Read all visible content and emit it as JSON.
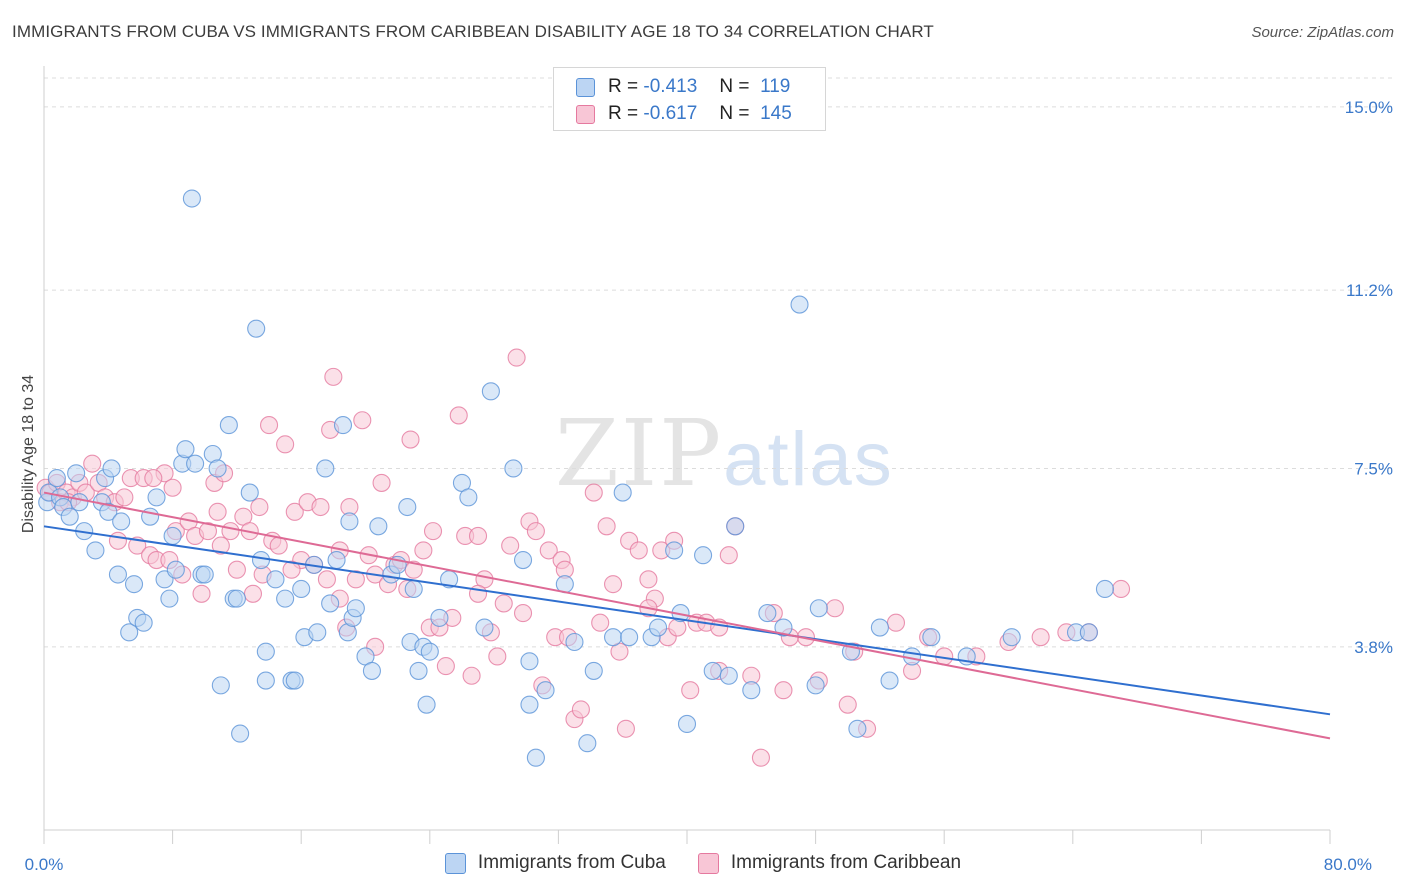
{
  "title": "IMMIGRANTS FROM CUBA VS IMMIGRANTS FROM CARIBBEAN DISABILITY AGE 18 TO 34 CORRELATION CHART",
  "source": "Source: ZipAtlas.com",
  "watermark": {
    "zip": "ZIP",
    "atlas": "atlas"
  },
  "legend": {
    "rows": [
      {
        "r_label": "R =",
        "r_value": "-0.413",
        "n_label": "N =",
        "n_value": "119",
        "color": "#a8c8f0"
      },
      {
        "r_label": "R =",
        "r_value": "-0.617",
        "n_label": "N =",
        "n_value": "145",
        "color": "#f6b8cc"
      }
    ]
  },
  "bottom_legend": [
    "Immigrants from Cuba",
    "Immigrants from Caribbean"
  ],
  "chart_data": {
    "type": "scatter",
    "title": "IMMIGRANTS FROM CUBA VS IMMIGRANTS FROM CARIBBEAN DISABILITY AGE 18 TO 34 CORRELATION CHART",
    "ylabel": "Disability Age 18 to 34",
    "xlim": [
      0,
      80
    ],
    "ylim": [
      0,
      15.6
    ],
    "x_tick_labels": [
      "0.0%",
      "80.0%"
    ],
    "y_ticks": [
      3.8,
      7.5,
      11.2,
      15.0
    ],
    "y_tick_labels": [
      "3.8%",
      "7.5%",
      "11.2%",
      "15.0%"
    ],
    "grid": true,
    "colors": {
      "cuba": "#5b93d8",
      "caribbean": "#e5799f",
      "cuba_fill": "#bcd5f3",
      "caribbean_fill": "#f8c6d6"
    },
    "series": [
      {
        "name": "Immigrants from Cuba",
        "trend": {
          "x": [
            0,
            80
          ],
          "y": [
            6.3,
            2.4
          ]
        },
        "points": [
          [
            0.2,
            6.8
          ],
          [
            0.3,
            7.0
          ],
          [
            0.8,
            7.3
          ],
          [
            1.0,
            6.9
          ],
          [
            1.2,
            6.7
          ],
          [
            1.6,
            6.5
          ],
          [
            2.0,
            7.4
          ],
          [
            2.2,
            6.8
          ],
          [
            2.5,
            6.2
          ],
          [
            3.2,
            5.8
          ],
          [
            3.6,
            6.8
          ],
          [
            3.8,
            7.3
          ],
          [
            4.0,
            6.6
          ],
          [
            4.2,
            7.5
          ],
          [
            4.6,
            5.3
          ],
          [
            4.8,
            6.4
          ],
          [
            5.3,
            4.1
          ],
          [
            5.6,
            5.1
          ],
          [
            5.8,
            4.4
          ],
          [
            6.2,
            4.3
          ],
          [
            6.6,
            6.5
          ],
          [
            7.0,
            6.9
          ],
          [
            7.5,
            5.2
          ],
          [
            7.8,
            4.8
          ],
          [
            8.0,
            6.1
          ],
          [
            8.2,
            5.4
          ],
          [
            8.6,
            7.6
          ],
          [
            8.8,
            7.9
          ],
          [
            9.2,
            13.1
          ],
          [
            9.4,
            7.6
          ],
          [
            9.8,
            5.3
          ],
          [
            10.0,
            5.3
          ],
          [
            10.5,
            7.8
          ],
          [
            10.8,
            7.5
          ],
          [
            11.0,
            3.0
          ],
          [
            11.5,
            8.4
          ],
          [
            11.8,
            4.8
          ],
          [
            12.0,
            4.8
          ],
          [
            12.2,
            2.0
          ],
          [
            12.8,
            7.0
          ],
          [
            13.2,
            10.4
          ],
          [
            13.5,
            5.6
          ],
          [
            13.8,
            3.1
          ],
          [
            13.8,
            3.7
          ],
          [
            14.4,
            5.2
          ],
          [
            15.0,
            4.8
          ],
          [
            15.4,
            3.1
          ],
          [
            15.6,
            3.1
          ],
          [
            16.0,
            5.0
          ],
          [
            16.2,
            4.0
          ],
          [
            16.8,
            5.5
          ],
          [
            17.0,
            4.1
          ],
          [
            17.5,
            7.5
          ],
          [
            17.8,
            4.7
          ],
          [
            18.2,
            5.6
          ],
          [
            18.6,
            8.4
          ],
          [
            18.9,
            4.1
          ],
          [
            19.0,
            6.4
          ],
          [
            19.2,
            4.4
          ],
          [
            19.4,
            4.6
          ],
          [
            20.0,
            3.6
          ],
          [
            20.4,
            3.3
          ],
          [
            20.8,
            6.3
          ],
          [
            21.6,
            5.3
          ],
          [
            22.0,
            5.5
          ],
          [
            22.6,
            6.7
          ],
          [
            22.8,
            3.9
          ],
          [
            23.0,
            5.0
          ],
          [
            23.3,
            3.3
          ],
          [
            23.6,
            3.8
          ],
          [
            23.8,
            2.6
          ],
          [
            24.0,
            3.7
          ],
          [
            24.6,
            4.4
          ],
          [
            25.2,
            5.2
          ],
          [
            26.0,
            7.2
          ],
          [
            26.4,
            6.9
          ],
          [
            27.4,
            4.2
          ],
          [
            27.8,
            9.1
          ],
          [
            29.2,
            7.5
          ],
          [
            29.8,
            5.6
          ],
          [
            30.2,
            3.5
          ],
          [
            30.2,
            2.6
          ],
          [
            30.6,
            1.5
          ],
          [
            31.2,
            2.9
          ],
          [
            32.4,
            5.1
          ],
          [
            33.0,
            3.9
          ],
          [
            33.8,
            1.8
          ],
          [
            34.2,
            3.3
          ],
          [
            35.4,
            4.0
          ],
          [
            36.0,
            7.0
          ],
          [
            36.4,
            4.0
          ],
          [
            37.8,
            4.0
          ],
          [
            38.2,
            4.2
          ],
          [
            39.2,
            5.8
          ],
          [
            39.6,
            4.5
          ],
          [
            40.0,
            2.2
          ],
          [
            41.0,
            5.7
          ],
          [
            41.6,
            3.3
          ],
          [
            42.6,
            3.2
          ],
          [
            43.0,
            6.3
          ],
          [
            44.0,
            2.9
          ],
          [
            45.0,
            4.5
          ],
          [
            46.0,
            4.2
          ],
          [
            47.0,
            10.9
          ],
          [
            48.0,
            3.0
          ],
          [
            48.2,
            4.6
          ],
          [
            50.2,
            3.7
          ],
          [
            50.6,
            2.1
          ],
          [
            52.0,
            4.2
          ],
          [
            52.6,
            3.1
          ],
          [
            54.0,
            3.6
          ],
          [
            55.2,
            4.0
          ],
          [
            57.4,
            3.6
          ],
          [
            60.2,
            4.0
          ],
          [
            64.2,
            4.1
          ],
          [
            65.0,
            4.1
          ],
          [
            66.0,
            5.0
          ]
        ]
      },
      {
        "name": "Immigrants from Caribbean",
        "trend": {
          "x": [
            0,
            80
          ],
          "y": [
            7.0,
            1.9
          ]
        },
        "points": [
          [
            0.1,
            7.1
          ],
          [
            0.4,
            7.0
          ],
          [
            0.8,
            7.2
          ],
          [
            1.0,
            6.8
          ],
          [
            1.4,
            7.0
          ],
          [
            1.8,
            6.9
          ],
          [
            2.2,
            7.2
          ],
          [
            2.6,
            7.0
          ],
          [
            3.0,
            7.6
          ],
          [
            3.4,
            7.2
          ],
          [
            3.8,
            6.9
          ],
          [
            4.4,
            6.8
          ],
          [
            4.6,
            6.0
          ],
          [
            5.0,
            6.9
          ],
          [
            5.4,
            7.3
          ],
          [
            5.8,
            5.9
          ],
          [
            6.2,
            7.3
          ],
          [
            6.6,
            5.7
          ],
          [
            7.0,
            5.6
          ],
          [
            7.5,
            7.4
          ],
          [
            7.8,
            5.6
          ],
          [
            8.0,
            7.1
          ],
          [
            8.2,
            6.2
          ],
          [
            8.6,
            5.3
          ],
          [
            9.0,
            6.4
          ],
          [
            9.4,
            6.1
          ],
          [
            9.8,
            4.9
          ],
          [
            10.2,
            6.2
          ],
          [
            10.6,
            7.2
          ],
          [
            10.8,
            6.6
          ],
          [
            11.2,
            7.4
          ],
          [
            11.6,
            6.2
          ],
          [
            12.0,
            5.4
          ],
          [
            12.4,
            6.5
          ],
          [
            12.8,
            6.2
          ],
          [
            13.0,
            4.9
          ],
          [
            13.4,
            6.7
          ],
          [
            13.6,
            5.3
          ],
          [
            14.0,
            8.4
          ],
          [
            14.2,
            6.0
          ],
          [
            14.6,
            5.9
          ],
          [
            15.0,
            8.0
          ],
          [
            15.6,
            6.6
          ],
          [
            16.0,
            5.6
          ],
          [
            16.4,
            6.8
          ],
          [
            16.8,
            5.5
          ],
          [
            17.2,
            6.7
          ],
          [
            17.6,
            5.2
          ],
          [
            17.8,
            8.3
          ],
          [
            18.0,
            9.4
          ],
          [
            18.4,
            5.8
          ],
          [
            18.8,
            4.2
          ],
          [
            19.0,
            6.7
          ],
          [
            19.4,
            5.2
          ],
          [
            19.8,
            8.5
          ],
          [
            20.2,
            5.7
          ],
          [
            20.6,
            5.3
          ],
          [
            21.0,
            7.2
          ],
          [
            21.4,
            5.1
          ],
          [
            21.8,
            5.5
          ],
          [
            22.2,
            5.6
          ],
          [
            22.6,
            5.0
          ],
          [
            22.8,
            8.1
          ],
          [
            23.0,
            5.4
          ],
          [
            23.6,
            5.8
          ],
          [
            24.0,
            4.2
          ],
          [
            24.2,
            6.2
          ],
          [
            24.6,
            4.2
          ],
          [
            25.0,
            3.4
          ],
          [
            25.4,
            4.4
          ],
          [
            25.8,
            8.6
          ],
          [
            26.2,
            6.1
          ],
          [
            26.6,
            3.2
          ],
          [
            27.0,
            6.1
          ],
          [
            27.4,
            5.2
          ],
          [
            27.8,
            4.1
          ],
          [
            28.2,
            3.6
          ],
          [
            28.6,
            4.7
          ],
          [
            29.0,
            5.9
          ],
          [
            29.4,
            9.8
          ],
          [
            29.8,
            4.5
          ],
          [
            30.2,
            6.4
          ],
          [
            30.6,
            6.2
          ],
          [
            31.0,
            3.0
          ],
          [
            31.4,
            5.8
          ],
          [
            31.8,
            4.0
          ],
          [
            32.2,
            5.6
          ],
          [
            32.6,
            4.0
          ],
          [
            33.0,
            2.3
          ],
          [
            33.4,
            2.5
          ],
          [
            34.2,
            7.0
          ],
          [
            34.6,
            4.3
          ],
          [
            35.0,
            6.3
          ],
          [
            35.4,
            5.1
          ],
          [
            35.8,
            3.7
          ],
          [
            36.2,
            2.1
          ],
          [
            36.4,
            6.0
          ],
          [
            37.0,
            5.8
          ],
          [
            37.6,
            5.2
          ],
          [
            38.0,
            4.8
          ],
          [
            38.4,
            5.8
          ],
          [
            38.8,
            4.0
          ],
          [
            39.2,
            6.0
          ],
          [
            39.4,
            4.2
          ],
          [
            40.2,
            2.9
          ],
          [
            40.6,
            4.3
          ],
          [
            41.2,
            4.3
          ],
          [
            42.0,
            3.3
          ],
          [
            42.6,
            5.7
          ],
          [
            43.0,
            6.3
          ],
          [
            44.0,
            3.2
          ],
          [
            44.6,
            1.5
          ],
          [
            45.4,
            4.5
          ],
          [
            46.0,
            2.9
          ],
          [
            47.4,
            4.0
          ],
          [
            48.2,
            3.1
          ],
          [
            49.2,
            4.6
          ],
          [
            50.4,
            3.7
          ],
          [
            51.2,
            2.1
          ],
          [
            53.0,
            4.3
          ],
          [
            54.0,
            3.3
          ],
          [
            55.0,
            4.0
          ],
          [
            56.0,
            3.6
          ],
          [
            58.0,
            3.6
          ],
          [
            60.0,
            3.9
          ],
          [
            62.0,
            4.0
          ],
          [
            63.6,
            4.1
          ],
          [
            65.0,
            4.1
          ],
          [
            67.0,
            5.0
          ],
          [
            1.5,
            6.8
          ],
          [
            6.8,
            7.3
          ],
          [
            11.0,
            5.9
          ],
          [
            15.4,
            5.4
          ],
          [
            18.4,
            4.8
          ],
          [
            27.0,
            4.9
          ],
          [
            32.4,
            5.4
          ],
          [
            37.6,
            4.6
          ],
          [
            42.0,
            4.2
          ],
          [
            46.4,
            4.0
          ],
          [
            50.0,
            2.6
          ],
          [
            20.6,
            3.8
          ]
        ]
      }
    ]
  }
}
